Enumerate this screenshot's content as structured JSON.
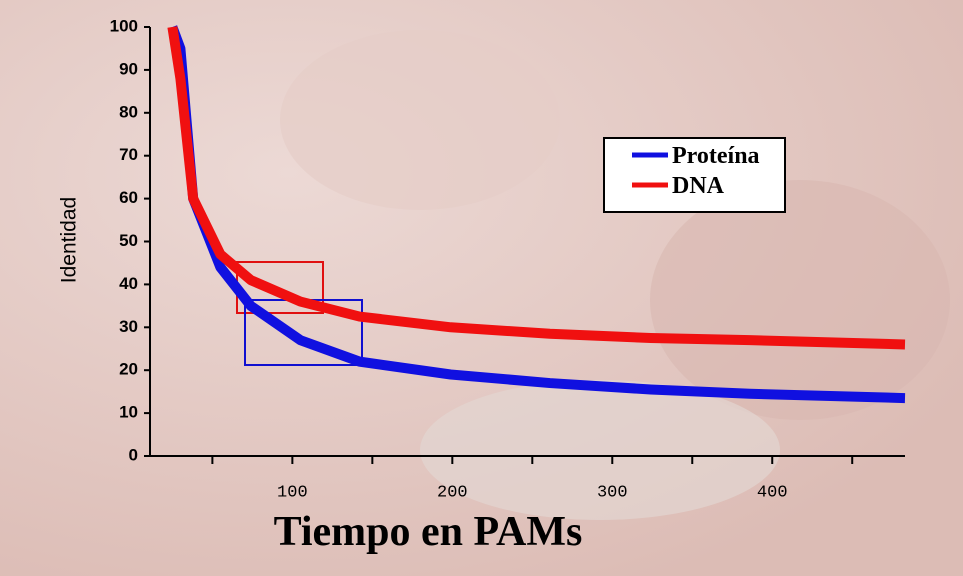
{
  "chart_data": {
    "type": "line",
    "x_label": "Tiempo en  PAMs",
    "y_label": "Identidad",
    "xlim": [
      11,
      483
    ],
    "ylim": [
      0,
      100
    ],
    "xticks": [
      100,
      200,
      300,
      400
    ],
    "minor_xticks": [
      50,
      150,
      250,
      350,
      450
    ],
    "yticks": [
      0,
      10,
      20,
      30,
      40,
      50,
      60,
      70,
      80,
      90,
      100
    ],
    "legend": "upper right",
    "series": [
      {
        "name": "Proteína",
        "color": "#1010e0",
        "x": [
          25,
          30,
          38,
          55,
          74,
          105,
          142,
          199,
          261,
          324,
          386,
          483
        ],
        "values": [
          100,
          95,
          60,
          44,
          35,
          27,
          22,
          19,
          17,
          15.5,
          14.5,
          13.5
        ]
      },
      {
        "name": "DNA",
        "color": "#f01010",
        "x": [
          25,
          30,
          38,
          55,
          74,
          105,
          142,
          199,
          261,
          324,
          386,
          483
        ],
        "values": [
          100,
          88,
          60,
          47,
          41,
          36,
          32.5,
          30,
          28.5,
          27.5,
          27,
          26
        ]
      }
    ]
  }
}
